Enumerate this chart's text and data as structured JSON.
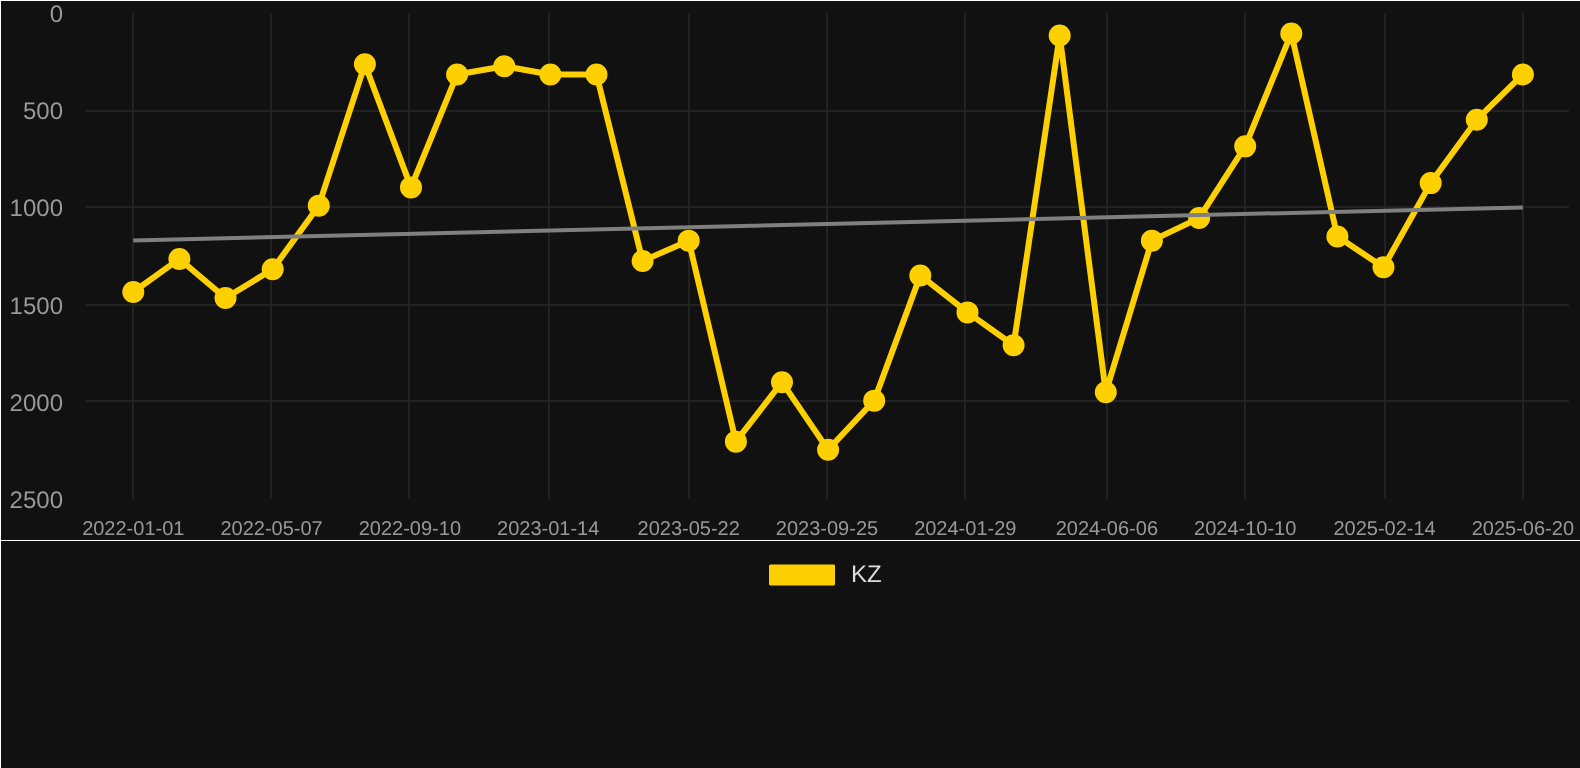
{
  "chart_data": {
    "type": "line",
    "x": [
      "2022-01-01",
      "2022-02-12",
      "2022-03-26",
      "2022-05-08",
      "2022-06-19",
      "2022-07-31",
      "2022-09-11",
      "2022-10-23",
      "2022-12-05",
      "2023-01-16",
      "2023-02-27",
      "2023-04-10",
      "2023-05-22",
      "2023-07-04",
      "2023-08-15",
      "2023-09-26",
      "2023-11-07",
      "2023-12-19",
      "2024-01-31",
      "2024-03-13",
      "2024-04-24",
      "2024-06-05",
      "2024-07-17",
      "2024-08-29",
      "2024-10-10",
      "2024-11-21",
      "2025-01-02",
      "2025-02-13",
      "2025-03-28",
      "2025-05-09",
      "2025-06-20"
    ],
    "series": [
      {
        "name": "KZ",
        "color": "#ffd000",
        "values": [
          1435,
          1265,
          1466,
          1318,
          991,
          264,
          897,
          316,
          274,
          316,
          316,
          1276,
          1171,
          2205,
          1899,
          2247,
          1994,
          1350,
          1540,
          1709,
          116,
          1951,
          1171,
          1055,
          686,
          105,
          1150,
          1308,
          875,
          549,
          316
        ]
      },
      {
        "type": "line",
        "color": "#808080",
        "marker": "none",
        "x": [
          "2022-01-01",
          "2025-06-20"
        ],
        "values": [
          1170,
          1000
        ]
      }
    ],
    "marker": "circle",
    "line_style": "solid",
    "grid": true,
    "legend": "bottom",
    "ylim": [
      2500,
      0
    ],
    "yticks": [
      0,
      500,
      1000,
      1500,
      2000,
      2500
    ],
    "xlim": [
      "2021-11-18",
      "2025-08-01"
    ],
    "xticks": [
      {
        "value": "2022-01-01",
        "label": "2022-01-01"
      },
      {
        "value": "2022-05-07",
        "label": "2022-05-07"
      },
      {
        "value": "2022-09-10",
        "label": "2022-09-10"
      },
      {
        "value": "2023-01-14",
        "label": "2023-01-14"
      },
      {
        "value": "2023-05-22",
        "label": "2023-05-22"
      },
      {
        "value": "2023-09-25",
        "label": "2023-09-25"
      },
      {
        "value": "2024-01-29",
        "label": "2024-01-29"
      },
      {
        "value": "2024-06-06",
        "label": "2024-06-06"
      },
      {
        "value": "2024-10-10",
        "label": "2024-10-10"
      },
      {
        "value": "2025-02-14",
        "label": "2025-02-14"
      },
      {
        "value": "2025-06-20",
        "label": "2025-06-20"
      }
    ]
  }
}
